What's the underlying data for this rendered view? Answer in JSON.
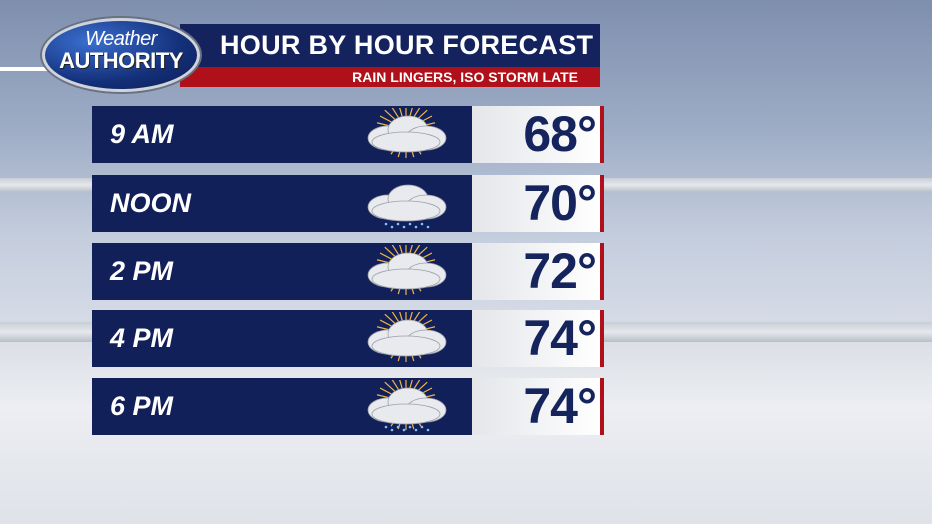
{
  "logo": {
    "line1": "Weather",
    "line2": "AUTHORITY"
  },
  "header": {
    "title": "HOUR BY HOUR FORECAST",
    "subtitle": "RAIN LINGERS, ISO STORM LATE"
  },
  "rows": [
    {
      "time": "9 AM",
      "temp": "68°",
      "icon": "partly-cloudy-sun-icon"
    },
    {
      "time": "NOON",
      "temp": "70°",
      "icon": "cloud-light-rain-icon"
    },
    {
      "time": "2 PM",
      "temp": "72°",
      "icon": "partly-cloudy-sun-icon"
    },
    {
      "time": "4 PM",
      "temp": "74°",
      "icon": "partly-cloudy-sun-icon"
    },
    {
      "time": "6 PM",
      "temp": "74°",
      "icon": "sun-cloud-rain-icon"
    }
  ],
  "colors": {
    "navy": "#12205a",
    "red": "#b0101a"
  }
}
